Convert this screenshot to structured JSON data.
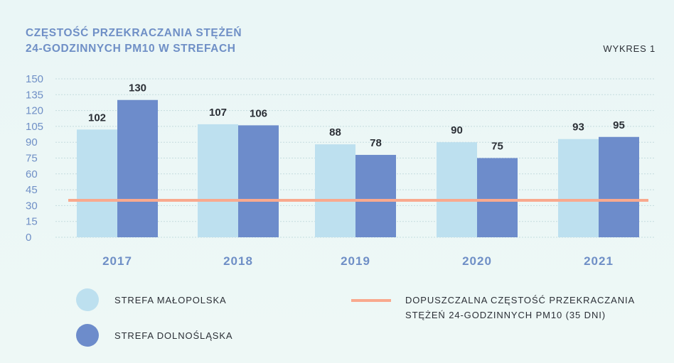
{
  "header": {
    "title_line1": "CZĘSTOŚĆ PRZEKRACZANIA STĘŻEŃ",
    "title_line2": "24-GODZINNYCH PM10 W STREFACH",
    "chart_number": "WYKRES 1"
  },
  "legend": {
    "series1": "STREFA MAŁOPOLSKA",
    "series2": "STREFA DOLNOŚLĄSKA",
    "threshold": "DOPUSZCZALNA CZĘSTOŚĆ PRZEKRACZANIA STĘŻEŃ 24-GODZINNYCH PM10 (35 DNI)"
  },
  "colors": {
    "series1": "#bde0ef",
    "series2": "#6d8ccb",
    "threshold": "#f9a98e",
    "title": "#6f8fc6",
    "grid": "#c4dcde"
  },
  "chart_data": {
    "type": "bar",
    "title": "CZĘSTOŚĆ PRZEKRACZANIA STĘŻEŃ 24-GODZINNYCH PM10 W STREFACH",
    "categories": [
      "2017",
      "2018",
      "2019",
      "2020",
      "2021"
    ],
    "series": [
      {
        "name": "STREFA MAŁOPOLSKA",
        "values": [
          102,
          107,
          88,
          90,
          93
        ]
      },
      {
        "name": "STREFA DOLNOŚLĄSKA",
        "values": [
          130,
          106,
          78,
          75,
          95
        ]
      }
    ],
    "threshold": {
      "name": "DOPUSZCZALNA CZĘSTOŚĆ PRZEKRACZANIA STĘŻEŃ 24-GODZINNYCH PM10 (35 DNI)",
      "value": 35
    },
    "yticks": [
      0,
      15,
      30,
      45,
      60,
      75,
      90,
      105,
      120,
      135,
      150
    ],
    "ylim": [
      0,
      150
    ],
    "grid": true,
    "legend_position": "bottom"
  }
}
